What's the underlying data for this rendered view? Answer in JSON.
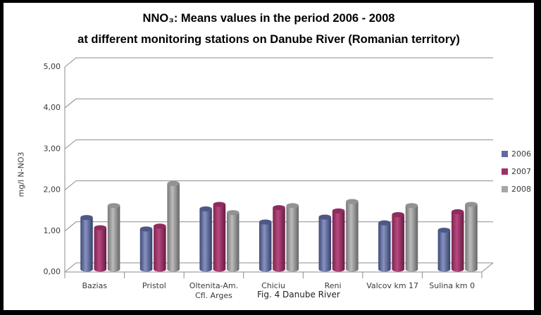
{
  "title": {
    "line1": "NNO₃: Means values in the period 2006 - 2008",
    "line2": "at different monitoring stations on Danube River (Romanian territory)"
  },
  "y_axis_title": "mg/l N-NO3",
  "caption": "Fig. 4 Danube River",
  "chart_data": {
    "type": "bar",
    "subtype": "3d-cylinder",
    "title": "NNO₃: Means values in the period 2006 - 2008 at different monitoring stations on Danube River (Romanian territory)",
    "xlabel": "",
    "ylabel": "mg/l N-NO3",
    "ylim": [
      0,
      5
    ],
    "ytick_labels": [
      "0,00",
      "1,00",
      "2,00",
      "3,00",
      "4,00",
      "5,00"
    ],
    "grid": true,
    "legend_position": "right",
    "categories": [
      "Bazias",
      "Pristol",
      "Oltenita-Am. Cfl. Arges",
      "Chiciu",
      "Reni",
      "Valcov km 17",
      "Sulina km 0"
    ],
    "category_label_lines": [
      [
        "Bazias"
      ],
      [
        "Pristol"
      ],
      [
        "Oltenita-Am.",
        "Cfl. Arges"
      ],
      [
        "Chiciu"
      ],
      [
        "Reni"
      ],
      [
        "Valcov km 17"
      ],
      [
        "Sulina km 0"
      ]
    ],
    "series": [
      {
        "name": "2006",
        "color": "#5f6b9e",
        "cap": "#4d5886",
        "gradient": [
          "#3e4977",
          "#8792c0",
          "#343f6b"
        ],
        "values": [
          1.26,
          0.98,
          1.47,
          1.15,
          1.27,
          1.13,
          0.95
        ]
      },
      {
        "name": "2007",
        "color": "#9e3265",
        "cap": "#8e2c5d",
        "gradient": [
          "#7b2450",
          "#b8497f",
          "#671a42"
        ],
        "values": [
          1.01,
          1.05,
          1.58,
          1.5,
          1.42,
          1.33,
          1.4
        ]
      },
      {
        "name": "2008",
        "color": "#a6a6a6",
        "cap": "#929292",
        "gradient": [
          "#767676",
          "#bcbcbc",
          "#646464"
        ],
        "values": [
          1.55,
          2.09,
          1.38,
          1.55,
          1.65,
          1.55,
          1.58
        ]
      }
    ],
    "axis_color": "#8c8c8c",
    "tick_text_color": "#3a3a3a"
  }
}
